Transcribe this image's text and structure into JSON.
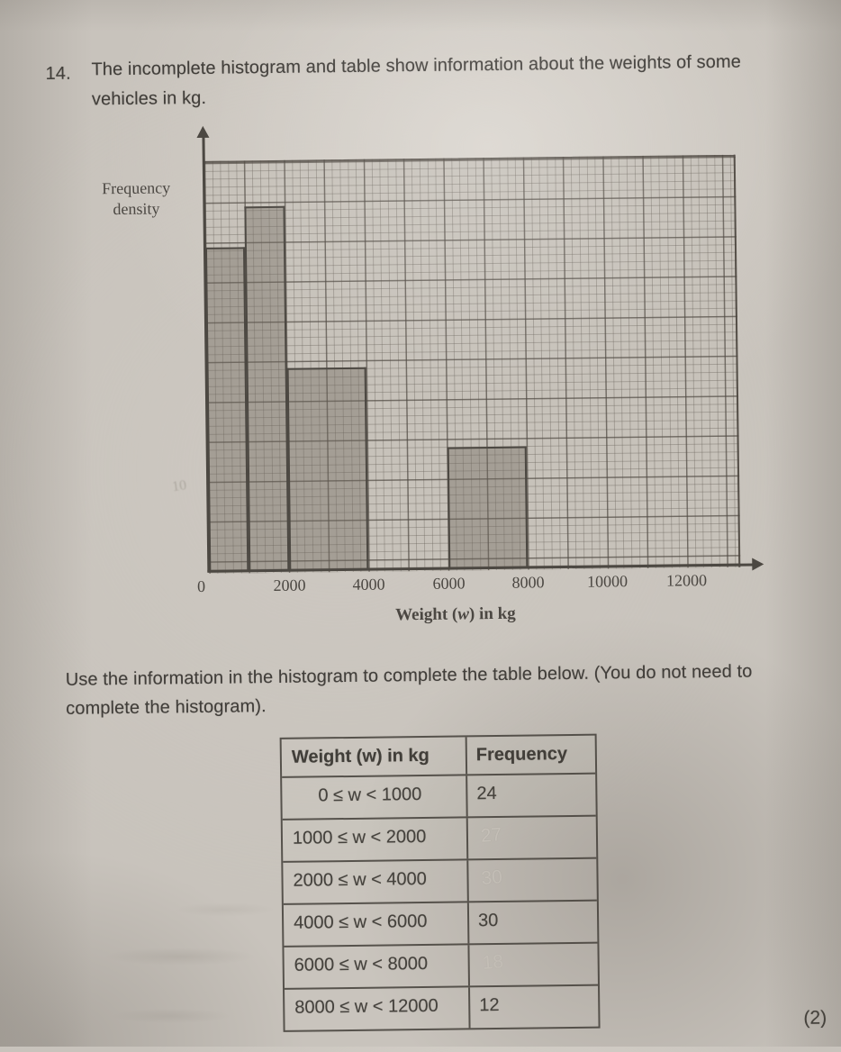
{
  "question": {
    "number": "14.",
    "line1": "The incomplete histogram and table show information about the weights of some",
    "line2": "vehicles in kg."
  },
  "histogram": {
    "y_axis_label_line1": "Frequency",
    "y_axis_label_line2": "density",
    "x_axis_label_pre": "Weight (",
    "x_axis_label_var": "w",
    "x_axis_label_post": ") in kg",
    "x_ticks": [
      "0",
      "2000",
      "4000",
      "6000",
      "8000",
      "10000",
      "12000"
    ],
    "pencil_annotation": "10"
  },
  "chart_data": {
    "type": "bar",
    "subtype": "histogram",
    "title": "",
    "xlabel": "Weight (w) in kg",
    "ylabel": "Frequency density",
    "x_tick_values": [
      0,
      2000,
      4000,
      6000,
      8000,
      10000,
      12000
    ],
    "fd_units": "per 1000 kg (no numeric y scale printed)",
    "bars": [
      {
        "w_start": 0,
        "w_end": 1000,
        "frequency_density": 24,
        "frequency": 24
      },
      {
        "w_start": 1000,
        "w_end": 2000,
        "frequency_density": 27,
        "frequency": 27
      },
      {
        "w_start": 2000,
        "w_end": 4000,
        "frequency_density": 15,
        "frequency": 30
      },
      {
        "w_start": 6000,
        "w_end": 8000,
        "frequency_density": 9,
        "frequency": 18
      }
    ],
    "classes_not_drawn": [
      {
        "w_start": 4000,
        "w_end": 6000
      },
      {
        "w_start": 8000,
        "w_end": 12000
      }
    ]
  },
  "instruction": {
    "line1": "Use the information in the histogram to complete the table below. (You do not need to",
    "line2": "complete the histogram)."
  },
  "table": {
    "headers": [
      "Weight (w) in kg",
      "Frequency"
    ],
    "rows": [
      {
        "range": "0 ≤ w < 1000",
        "frequency": "24",
        "pencil": ""
      },
      {
        "range": "1000 ≤ w < 2000",
        "frequency": "",
        "pencil": "27"
      },
      {
        "range": "2000 ≤ w < 4000",
        "frequency": "",
        "pencil": "30"
      },
      {
        "range": "4000 ≤ w < 6000",
        "frequency": "30",
        "pencil": ""
      },
      {
        "range": "6000 ≤ w < 8000",
        "frequency": "",
        "pencil": "18"
      },
      {
        "range": "8000 ≤ w < 12000",
        "frequency": "12",
        "pencil": ""
      }
    ]
  },
  "marks": "(2)"
}
